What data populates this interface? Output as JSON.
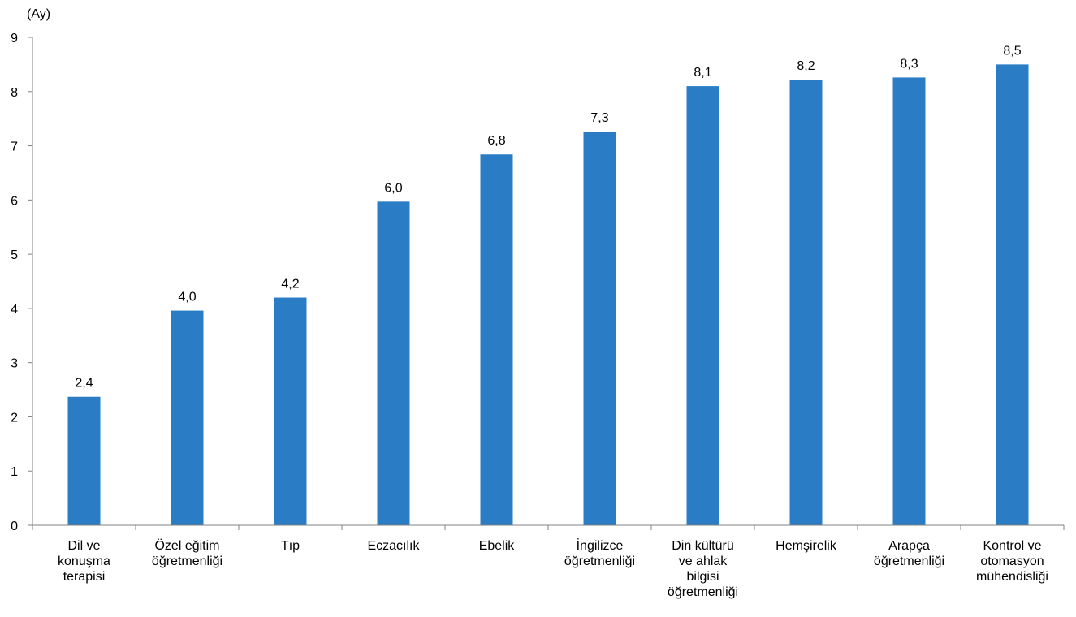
{
  "chart_data": {
    "type": "bar",
    "ylabel": "(Ay)",
    "ylim": [
      0,
      9
    ],
    "yticks": [
      "0",
      "1",
      "2",
      "3",
      "4",
      "5",
      "6",
      "7",
      "8",
      "9"
    ],
    "grid": false,
    "categories": [
      [
        "Dil ve",
        "konuşma",
        "terapisi"
      ],
      [
        "Özel eğitim",
        "öğretmenliği"
      ],
      [
        "Tıp"
      ],
      [
        "Eczacılık"
      ],
      [
        "Ebelik"
      ],
      [
        "İngilizce",
        "öğretmenliği"
      ],
      [
        "Din kültürü",
        "ve ahlak",
        "bilgisi",
        "öğretmenliği"
      ],
      [
        "Hemşirelik"
      ],
      [
        "Arapça",
        "öğretmenliği"
      ],
      [
        "Kontrol ve",
        "otomasyon",
        "mühendisliği"
      ]
    ],
    "values": [
      2.37,
      3.96,
      4.2,
      5.97,
      6.84,
      7.26,
      8.1,
      8.22,
      8.26,
      8.5
    ],
    "data_labels": [
      "2,4",
      "4,0",
      "4,2",
      "6,0",
      "6,8",
      "7,3",
      "8,1",
      "8,2",
      "8,3",
      "8,5"
    ],
    "bar_color": "#2a7dc5",
    "axis_color": "#808080"
  }
}
